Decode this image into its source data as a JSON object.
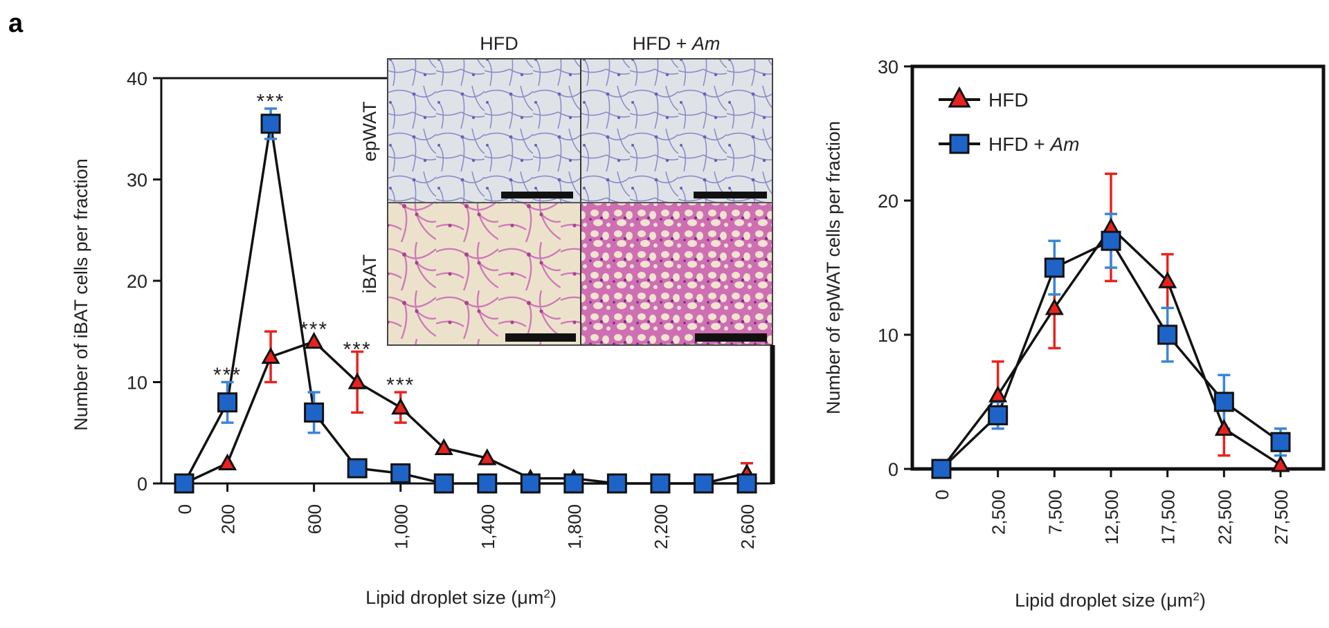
{
  "panel_label": "a",
  "colors": {
    "hfd": "#e8231e",
    "hfd_am": "#1c6fc8",
    "hfd_marker": "#e8231e",
    "hfd_am_marker": "#1e64c8",
    "line": "#111111",
    "am_err": "#3a86d8"
  },
  "legend": {
    "hfd": "HFD",
    "hfd_am_prefix": "HFD + ",
    "hfd_am_italic": "Am"
  },
  "inset": {
    "col_hfd": "HFD",
    "col_hfd_am_prefix": "HFD + ",
    "col_hfd_am_italic": "Am",
    "row_top": "epWAT",
    "row_bottom": "iBAT"
  },
  "chart_data": [
    {
      "type": "line",
      "ylabel": "Number of iBAT cells per fraction",
      "xlabel_prefix": "Lipid droplet size (μm",
      "xlabel_sup": "2",
      "xlabel_suffix": ")",
      "ylim": [
        0,
        40
      ],
      "yticks": [
        "0",
        "10",
        "20",
        "30",
        "40"
      ],
      "ytick_values": [
        0,
        10,
        20,
        30,
        40
      ],
      "xlim": [
        0,
        2600
      ],
      "xticks": [
        "0",
        "200",
        "600",
        "1,000",
        "1,400",
        "1,800",
        "2,200",
        "2,600"
      ],
      "xtick_values": [
        0,
        200,
        600,
        1000,
        1400,
        1800,
        2200,
        2600
      ],
      "series": [
        {
          "name": "HFD",
          "x": [
            0,
            200,
            400,
            600,
            800,
            1000,
            1200,
            1400,
            1600,
            1800,
            2000,
            2200,
            2400,
            2600
          ],
          "y": [
            0,
            2,
            12.5,
            14,
            10,
            7.5,
            3.5,
            2.5,
            0.5,
            0.5,
            0,
            0,
            0,
            1
          ],
          "err": [
            0,
            0,
            2.5,
            0,
            3,
            1.5,
            0,
            0,
            0,
            0,
            0,
            0,
            0,
            1
          ]
        },
        {
          "name": "HFD + Am",
          "x": [
            0,
            200,
            400,
            600,
            800,
            1000,
            1200,
            1400,
            1600,
            1800,
            2000,
            2200,
            2400,
            2600
          ],
          "y": [
            0,
            8,
            35.5,
            7,
            1.5,
            1,
            0,
            0,
            0,
            0,
            0,
            0,
            0,
            0
          ],
          "err": [
            0,
            2,
            1.5,
            2,
            0,
            0,
            0,
            0,
            0,
            0,
            0,
            0,
            0,
            0
          ]
        }
      ],
      "annotations": [
        {
          "x": 400,
          "y": 38,
          "text": "***"
        },
        {
          "x": 200,
          "y": 11,
          "text": "***"
        },
        {
          "x": 600,
          "y": 15.5,
          "text": "***"
        },
        {
          "x": 800,
          "y": 13.5,
          "text": "***"
        },
        {
          "x": 1000,
          "y": 10,
          "text": "***"
        }
      ]
    },
    {
      "type": "line",
      "ylabel": "Number of epWAT cells per fraction",
      "xlabel_prefix": "Lipid droplet size (μm",
      "xlabel_sup": "2",
      "xlabel_suffix": ")",
      "ylim": [
        0,
        30
      ],
      "yticks": [
        "0",
        "10",
        "20",
        "30"
      ],
      "ytick_values": [
        0,
        10,
        20,
        30
      ],
      "categories": [
        "0",
        "2,500",
        "7,500",
        "12,500",
        "17,500",
        "22,500",
        "27,500"
      ],
      "series": [
        {
          "name": "HFD",
          "y": [
            0,
            5.5,
            12,
            18,
            14,
            3,
            0.3
          ],
          "err": [
            0,
            2.5,
            3,
            4,
            2,
            2,
            0
          ]
        },
        {
          "name": "HFD + Am",
          "y": [
            0,
            4,
            15,
            17,
            10,
            5,
            2
          ],
          "err": [
            0,
            1,
            2,
            2,
            2,
            2,
            1
          ]
        }
      ],
      "legend_position": "top-left"
    }
  ]
}
